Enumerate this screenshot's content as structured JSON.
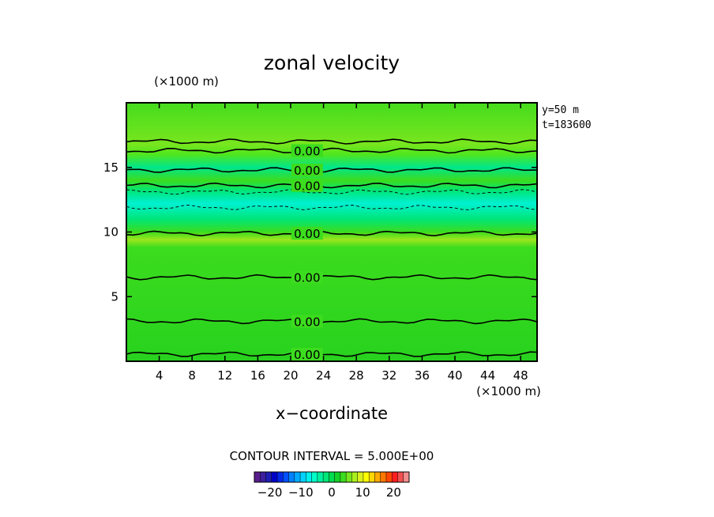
{
  "chart_data": {
    "type": "heatmap",
    "title": "zonal velocity",
    "xlabel": "x−coordinate",
    "x_unit": "(×1000 m)",
    "y_unit": "(×1000 m)",
    "annotation_lines": [
      "y=50  m",
      "t=183600"
    ],
    "contour_interval_text": "CONTOUR INTERVAL = 5.000E+00",
    "contour_label": "0.00",
    "xlim": [
      0,
      50
    ],
    "ylim": [
      0,
      20
    ],
    "x_ticks": [
      4,
      8,
      12,
      16,
      20,
      24,
      28,
      32,
      36,
      40,
      44,
      48
    ],
    "x_tick_labels": [
      "4",
      "8",
      "12",
      "16",
      "20",
      "24",
      "28",
      "32",
      "36",
      "40",
      "44",
      "48"
    ],
    "y_ticks": [
      5,
      10,
      15
    ],
    "y_tick_labels": [
      "5",
      "10",
      "15"
    ],
    "colorbar": {
      "range": [
        -25,
        25
      ],
      "tick_values": [
        -20,
        -10,
        0,
        10,
        20
      ],
      "tick_labels": [
        "−20",
        "−10",
        "0",
        "10",
        "20"
      ],
      "colors": [
        "#5a1e8c",
        "#3c1e9e",
        "#1e1eb4",
        "#0000c8",
        "#0028e6",
        "#0050ff",
        "#0082ff",
        "#00aaff",
        "#00d2ff",
        "#00f0f0",
        "#00ffc8",
        "#00f0a0",
        "#00e678",
        "#00dc50",
        "#14d228",
        "#3cdc1e",
        "#78e61e",
        "#aaf01e",
        "#dcf01e",
        "#ffff00",
        "#ffd700",
        "#ffaa00",
        "#ff7800",
        "#ff4600",
        "#ff1e1e",
        "#f05050",
        "#f08c8c"
      ]
    },
    "contour_lines": [
      {
        "value": 0,
        "style": "solid",
        "y": 0.55,
        "x_range": [
          0,
          50
        ]
      },
      {
        "value": 0,
        "style": "solid",
        "y": 3.1,
        "x_range": [
          0,
          50
        ]
      },
      {
        "value": 0,
        "style": "solid",
        "y": 6.5,
        "x_range": [
          0,
          50
        ]
      },
      {
        "value": 0,
        "style": "solid",
        "y": 9.9,
        "x_range": [
          0,
          50
        ]
      },
      {
        "value": 0,
        "style": "solid",
        "y": 13.6,
        "x_range": [
          0,
          50
        ]
      },
      {
        "value": 0,
        "style": "solid",
        "y": 14.8,
        "x_range": [
          0,
          50
        ]
      },
      {
        "value": 0,
        "style": "solid",
        "y": 16.3,
        "x_range": [
          0,
          50
        ]
      },
      {
        "value": 0,
        "style": "solid",
        "y": 17.0,
        "x_range": [
          0,
          50
        ]
      },
      {
        "value": -5,
        "style": "dashed",
        "y": 13.1,
        "x_range": [
          0,
          50
        ]
      },
      {
        "value": -5,
        "style": "dashed",
        "y": 11.9,
        "x_range": [
          0,
          50
        ]
      }
    ],
    "contour_label_points": [
      {
        "x": 22,
        "y": 16.3
      },
      {
        "x": 22,
        "y": 14.8
      },
      {
        "x": 22,
        "y": 13.6
      },
      {
        "x": 22,
        "y": 9.9
      },
      {
        "x": 22,
        "y": 6.5
      },
      {
        "x": 22,
        "y": 3.1
      },
      {
        "x": 22,
        "y": 0.55
      }
    ],
    "field_bands": [
      {
        "y_range": [
          0,
          9.0
        ],
        "value": 1.5
      },
      {
        "y_range": [
          9.0,
          9.6
        ],
        "value": 3.5
      },
      {
        "y_range": [
          9.6,
          11.2
        ],
        "value": 0.5
      },
      {
        "y_range": [
          11.2,
          13.2
        ],
        "value": -4
      },
      {
        "y_range": [
          13.2,
          14.6
        ],
        "value": 1.5
      },
      {
        "y_range": [
          14.6,
          15.6
        ],
        "value": -1
      },
      {
        "y_range": [
          15.6,
          17.0
        ],
        "value": 2
      },
      {
        "y_range": [
          17.0,
          20
        ],
        "value": 1
      }
    ]
  }
}
